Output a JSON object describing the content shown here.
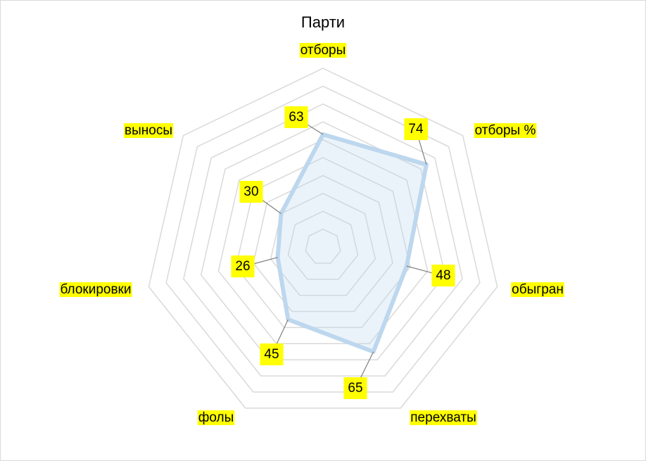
{
  "chart_data": {
    "type": "radar",
    "title": "Парти",
    "categories": [
      "отборы",
      "отборы %",
      "обыгран",
      "перехваты",
      "фолы",
      "блокировки",
      "выносы"
    ],
    "series": [
      {
        "color": "#bdd7ee",
        "values": [
          63,
          74,
          48,
          65,
          45,
          26,
          30
        ]
      }
    ],
    "ylim": [
      0,
      100
    ],
    "yticks": [
      0,
      10,
      20,
      30,
      40,
      50,
      60,
      70,
      80,
      90,
      100
    ],
    "grid": true
  }
}
